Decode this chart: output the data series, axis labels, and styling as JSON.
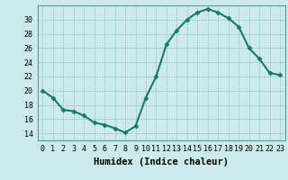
{
  "x": [
    0,
    1,
    2,
    3,
    4,
    5,
    6,
    7,
    8,
    9,
    10,
    11,
    12,
    13,
    14,
    15,
    16,
    17,
    18,
    19,
    20,
    21,
    22,
    23
  ],
  "y": [
    20.0,
    19.0,
    17.3,
    17.1,
    16.5,
    15.5,
    15.2,
    14.7,
    14.1,
    15.0,
    19.0,
    22.0,
    26.5,
    28.5,
    30.0,
    31.0,
    31.5,
    31.0,
    30.2,
    29.0,
    26.0,
    24.5,
    22.5,
    22.2
  ],
  "line_color": "#1a7a6a",
  "marker": "D",
  "marker_size": 2.5,
  "bg_color": "#cceaec",
  "grid_color": "#aad4d8",
  "xlabel": "Humidex (Indice chaleur)",
  "ylim": [
    13,
    32
  ],
  "xlim": [
    -0.5,
    23.5
  ],
  "yticks": [
    14,
    16,
    18,
    20,
    22,
    24,
    26,
    28,
    30
  ],
  "xticks": [
    0,
    1,
    2,
    3,
    4,
    5,
    6,
    7,
    8,
    9,
    10,
    11,
    12,
    13,
    14,
    15,
    16,
    17,
    18,
    19,
    20,
    21,
    22,
    23
  ],
  "xtick_labels": [
    "0",
    "1",
    "2",
    "3",
    "4",
    "5",
    "6",
    "7",
    "8",
    "9",
    "10",
    "11",
    "12",
    "13",
    "14",
    "15",
    "16",
    "17",
    "18",
    "19",
    "20",
    "21",
    "22",
    "23"
  ],
  "linewidth": 1.5,
  "tick_fontsize": 6,
  "xlabel_fontsize": 7.5
}
